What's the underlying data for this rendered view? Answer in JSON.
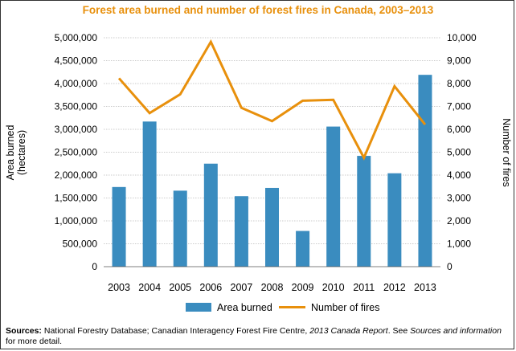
{
  "chart_data": {
    "type": "bar+line",
    "title": "Forest area burned and number of forest fires in Canada, 2003–2013",
    "categories": [
      "2003",
      "2004",
      "2005",
      "2006",
      "2007",
      "2008",
      "2009",
      "2010",
      "2011",
      "2012",
      "2013"
    ],
    "series": [
      {
        "name": "Area burned",
        "type": "bar",
        "axis": "left",
        "values": [
          1740000,
          3170000,
          1660000,
          2250000,
          1540000,
          1720000,
          780000,
          3060000,
          2420000,
          2040000,
          4190000
        ]
      },
      {
        "name": "Number of fires",
        "type": "line",
        "axis": "right",
        "values": [
          8230,
          6710,
          7530,
          9820,
          6940,
          6360,
          7250,
          7290,
          4760,
          7880,
          6210
        ]
      }
    ],
    "y_left": {
      "label_lines": [
        "Area burned",
        "(hectares)"
      ],
      "ylim": [
        0,
        5000000
      ],
      "ticks": [
        "0",
        "500,000",
        "1,000,000",
        "1,500,000",
        "2,000,000",
        "2,500,000",
        "3,000,000",
        "3,500,000",
        "4,000,000",
        "4,500,000",
        "5,000,000"
      ]
    },
    "y_right": {
      "label": "Number of fires",
      "ylim": [
        0,
        10000
      ],
      "ticks": [
        "0",
        "1,000",
        "2,000",
        "3,000",
        "4,000",
        "5,000",
        "6,000",
        "7,000",
        "8,000",
        "9,000",
        "10,000"
      ]
    },
    "colors": {
      "bar": "#3a8cbf",
      "line": "#e8900c",
      "title": "#e8900c",
      "grid": "#bbbbbb"
    },
    "legend_position": "bottom"
  },
  "sources": {
    "label": "Sources:",
    "text1": " National Forestry Database; Canadian Interagency Forest Fire Centre, ",
    "italic": "2013 Canada Report",
    "text2": ". See ",
    "italic2": "Sources and information",
    "text3": " for more detail."
  }
}
